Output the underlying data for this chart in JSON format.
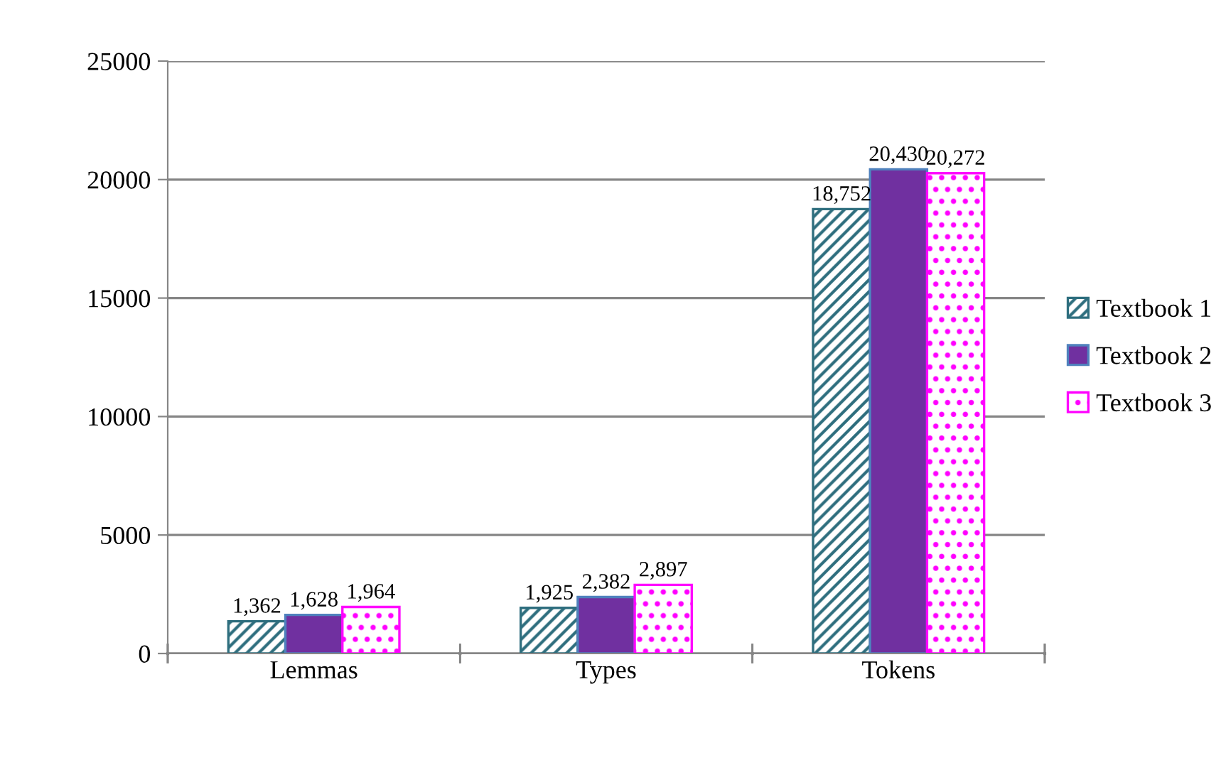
{
  "chart_data": {
    "type": "bar",
    "categories": [
      "Lemmas",
      "Types",
      "Tokens"
    ],
    "series": [
      {
        "name": "Textbook 1",
        "color": "#2e6e7e",
        "values": [
          1362,
          1925,
          18752
        ],
        "value_labels": [
          "1,362",
          "1,925",
          "18,752"
        ]
      },
      {
        "name": "Textbook 2",
        "color": "#7030a0",
        "values": [
          1628,
          2382,
          20430
        ],
        "value_labels": [
          "1,628",
          "2,382",
          "20,430"
        ]
      },
      {
        "name": "Textbook 3",
        "color": "#ff00ff",
        "values": [
          1964,
          2897,
          20272
        ],
        "value_labels": [
          "1,964",
          "2,897",
          "20,272"
        ]
      }
    ],
    "ylim": [
      0,
      25000
    ],
    "yticks": [
      0,
      5000,
      10000,
      15000,
      20000,
      25000
    ],
    "grid": "y",
    "legend": "right"
  }
}
